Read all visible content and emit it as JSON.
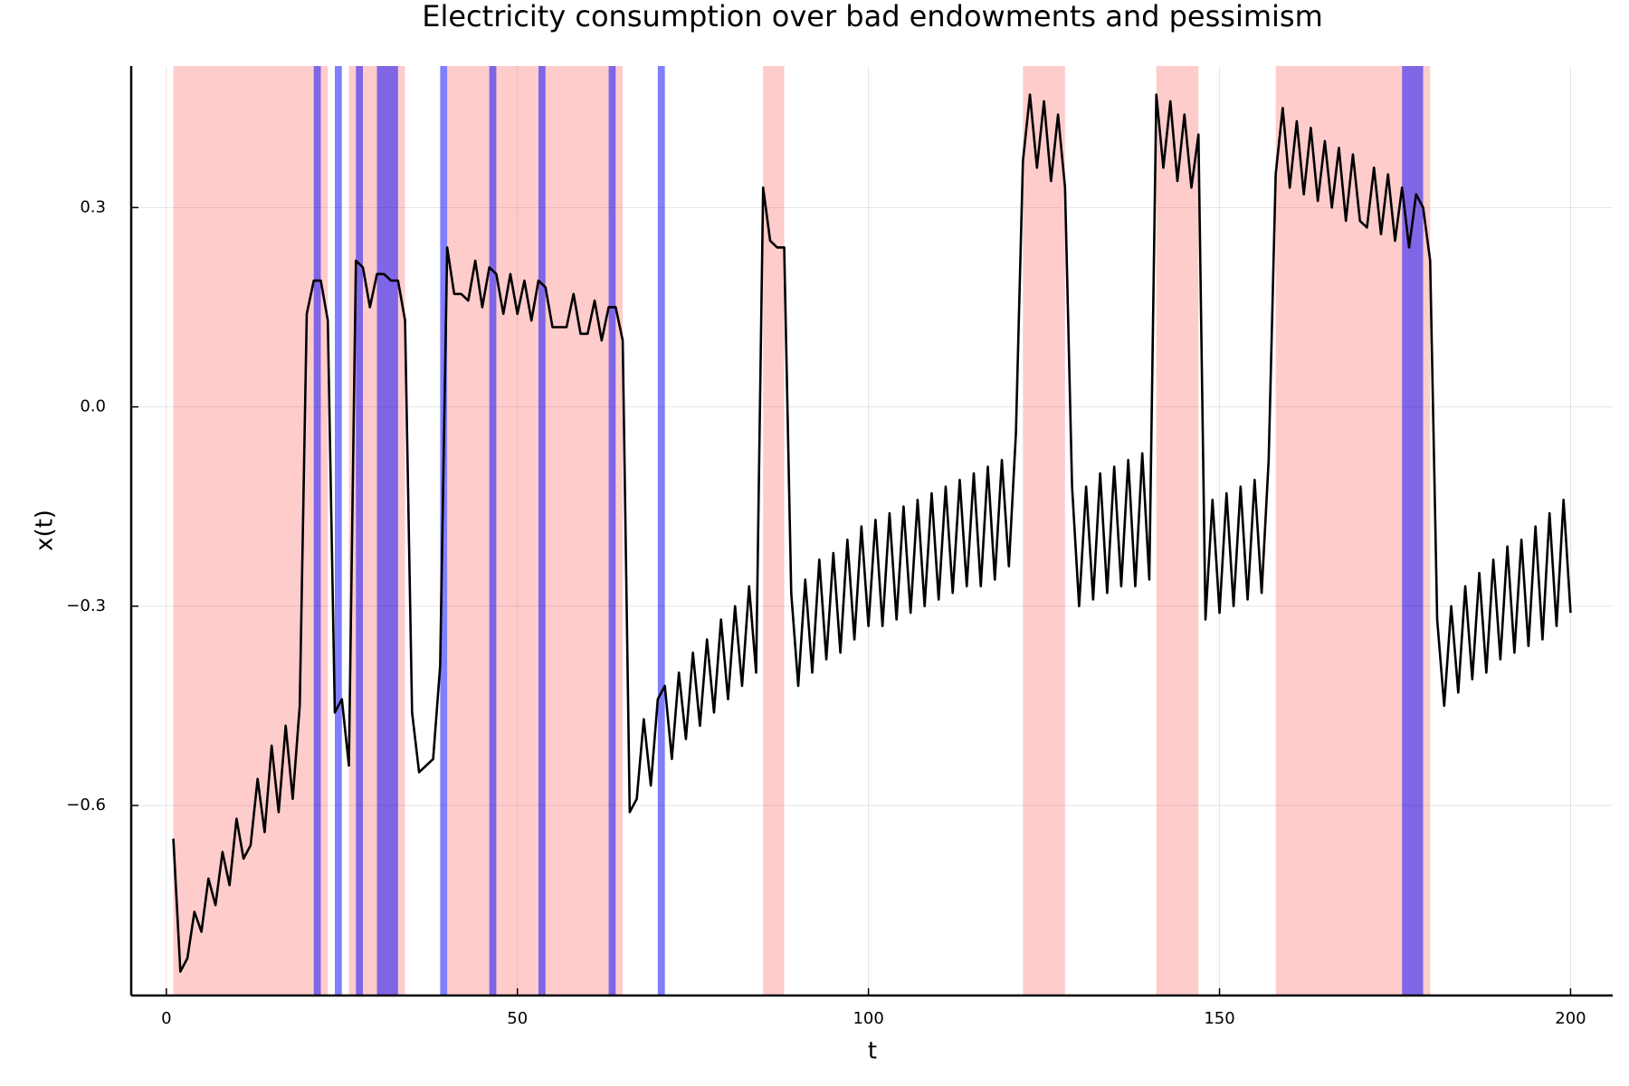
{
  "chart_data": {
    "type": "line",
    "title": "Electricity consumption over bad endowments and pessimism",
    "xlabel": "t",
    "ylabel": "x(t)",
    "xlim": [
      -5,
      206
    ],
    "ylim": [
      -0.886,
      0.513
    ],
    "xticks": [
      0,
      50,
      100,
      150,
      200
    ],
    "yticks": [
      0.3,
      {
        "value": 0,
        "label": "0.0"
      },
      {
        "value": -0.3,
        "label": "−0.3"
      },
      {
        "value": -0.6,
        "label": "−0.6"
      }
    ],
    "grid": true,
    "shaded_regions": [
      {
        "color": "#ff0000",
        "opacity": 0.2,
        "spans": [
          [
            1,
            23
          ],
          [
            26,
            34
          ],
          [
            40,
            65
          ],
          [
            85,
            88
          ],
          [
            122,
            128
          ],
          [
            141,
            147
          ],
          [
            158,
            180
          ]
        ]
      },
      {
        "color": "#0000ff",
        "opacity": 0.5,
        "spans": [
          [
            21,
            22
          ],
          [
            24,
            25
          ],
          [
            27,
            28
          ],
          [
            30,
            33
          ],
          [
            39,
            40
          ],
          [
            46,
            47
          ],
          [
            53,
            54
          ],
          [
            63,
            64
          ],
          [
            70,
            71
          ],
          [
            176,
            179
          ]
        ]
      }
    ],
    "series": [
      {
        "color": "#000000",
        "x": [
          1,
          2,
          3,
          4,
          5,
          6,
          7,
          8,
          9,
          10,
          11,
          12,
          13,
          14,
          15,
          16,
          17,
          18,
          19,
          20,
          21,
          22,
          23,
          24,
          25,
          26,
          27,
          28,
          29,
          30,
          31,
          32,
          33,
          34,
          35,
          36,
          37,
          38,
          39,
          40,
          41,
          42,
          43,
          44,
          45,
          46,
          47,
          48,
          49,
          50,
          51,
          52,
          53,
          54,
          55,
          56,
          57,
          58,
          59,
          60,
          61,
          62,
          63,
          64,
          65,
          66,
          67,
          68,
          69,
          70,
          71,
          72,
          73,
          74,
          75,
          76,
          77,
          78,
          79,
          80,
          81,
          82,
          83,
          84,
          85,
          86,
          87,
          88,
          89,
          90,
          91,
          92,
          93,
          94,
          95,
          96,
          97,
          98,
          99,
          100,
          101,
          102,
          103,
          104,
          105,
          106,
          107,
          108,
          109,
          110,
          111,
          112,
          113,
          114,
          115,
          116,
          117,
          118,
          119,
          120,
          121,
          122,
          123,
          124,
          125,
          126,
          127,
          128,
          129,
          130,
          131,
          132,
          133,
          134,
          135,
          136,
          137,
          138,
          139,
          140,
          141,
          142,
          143,
          144,
          145,
          146,
          147,
          148,
          149,
          150,
          151,
          152,
          153,
          154,
          155,
          156,
          157,
          158,
          159,
          160,
          161,
          162,
          163,
          164,
          165,
          166,
          167,
          168,
          169,
          170,
          171,
          172,
          173,
          174,
          175,
          176,
          177,
          178,
          179,
          180,
          181,
          182,
          183,
          184,
          185,
          186,
          187,
          188,
          189,
          190,
          191,
          192,
          193,
          194,
          195,
          196,
          197,
          198,
          199,
          200
        ],
        "values": [
          -0.65,
          -0.85,
          -0.83,
          -0.76,
          -0.79,
          -0.71,
          -0.75,
          -0.67,
          -0.72,
          -0.62,
          -0.68,
          -0.66,
          -0.56,
          -0.64,
          -0.51,
          -0.61,
          -0.48,
          -0.59,
          -0.45,
          0.14,
          0.19,
          0.19,
          0.13,
          -0.46,
          -0.44,
          -0.54,
          0.22,
          0.21,
          0.15,
          0.2,
          0.2,
          0.19,
          0.19,
          0.13,
          -0.46,
          -0.55,
          -0.54,
          -0.53,
          -0.39,
          0.24,
          0.17,
          0.17,
          0.16,
          0.22,
          0.15,
          0.21,
          0.2,
          0.14,
          0.2,
          0.14,
          0.19,
          0.13,
          0.19,
          0.18,
          0.12,
          0.12,
          0.12,
          0.17,
          0.11,
          0.11,
          0.16,
          0.1,
          0.15,
          0.15,
          0.1,
          -0.61,
          -0.59,
          -0.47,
          -0.57,
          -0.44,
          -0.42,
          -0.53,
          -0.4,
          -0.5,
          -0.37,
          -0.48,
          -0.35,
          -0.46,
          -0.32,
          -0.44,
          -0.3,
          -0.42,
          -0.27,
          -0.4,
          0.33,
          0.25,
          0.24,
          0.24,
          -0.28,
          -0.42,
          -0.26,
          -0.4,
          -0.23,
          -0.38,
          -0.22,
          -0.37,
          -0.2,
          -0.35,
          -0.18,
          -0.33,
          -0.17,
          -0.33,
          -0.16,
          -0.32,
          -0.15,
          -0.31,
          -0.14,
          -0.3,
          -0.13,
          -0.29,
          -0.12,
          -0.28,
          -0.11,
          -0.27,
          -0.1,
          -0.27,
          -0.09,
          -0.26,
          -0.08,
          -0.24,
          -0.04,
          0.37,
          0.47,
          0.36,
          0.46,
          0.34,
          0.44,
          0.33,
          -0.12,
          -0.3,
          -0.12,
          -0.29,
          -0.1,
          -0.28,
          -0.09,
          -0.27,
          -0.08,
          -0.27,
          -0.07,
          -0.26,
          0.47,
          0.36,
          0.46,
          0.34,
          0.44,
          0.33,
          0.41,
          -0.32,
          -0.14,
          -0.31,
          -0.13,
          -0.3,
          -0.12,
          -0.29,
          -0.11,
          -0.28,
          -0.08,
          0.35,
          0.45,
          0.33,
          0.43,
          0.32,
          0.42,
          0.31,
          0.4,
          0.3,
          0.39,
          0.28,
          0.38,
          0.28,
          0.27,
          0.36,
          0.26,
          0.35,
          0.25,
          0.33,
          0.24,
          0.32,
          0.3,
          0.22,
          -0.32,
          -0.45,
          -0.3,
          -0.43,
          -0.27,
          -0.41,
          -0.25,
          -0.4,
          -0.23,
          -0.38,
          -0.21,
          -0.37,
          -0.2,
          -0.36,
          -0.18,
          -0.35,
          -0.16,
          -0.33,
          -0.14,
          -0.31
        ]
      }
    ]
  }
}
